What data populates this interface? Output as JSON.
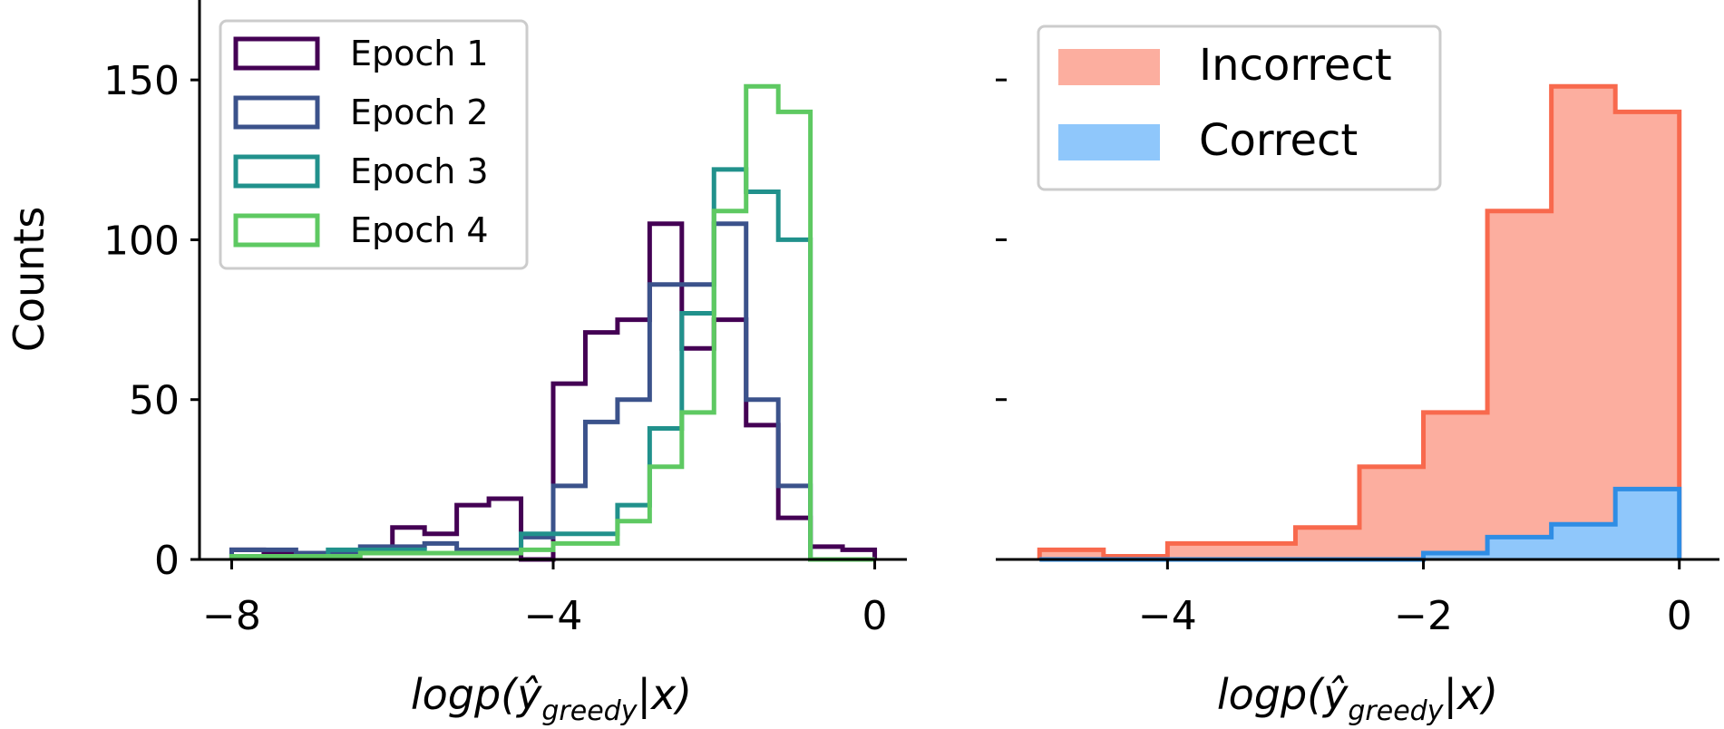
{
  "chart_data": [
    {
      "type": "histogram",
      "ylabel": "Counts",
      "xlabel": "logp(ŷ_greedy|x)",
      "xlim": [
        -8.4,
        0.4
      ],
      "ylim": [
        0,
        175
      ],
      "xticks": [
        -8,
        -4,
        0
      ],
      "xtick_labels": [
        "−8",
        "−4",
        "0"
      ],
      "yticks": [
        0,
        50,
        100,
        150
      ],
      "ytick_labels": [
        "0",
        "50",
        "100",
        "150"
      ],
      "bin_edges": [
        -8,
        -7.6,
        -7.2,
        -6.8,
        -6.4,
        -6,
        -5.6,
        -5.2,
        -4.8,
        -4.4,
        -4,
        -3.6,
        -3.2,
        -2.8,
        -2.4,
        -2,
        -1.6,
        -1.2,
        -0.8,
        -0.4,
        0
      ],
      "legend_position": "upper left",
      "series": [
        {
          "name": "Epoch 1",
          "color": "#440154",
          "values": [
            3,
            2,
            2,
            2,
            2,
            10,
            8,
            17,
            19,
            0,
            55,
            71,
            75,
            105,
            66,
            75,
            42,
            13,
            4,
            3
          ]
        },
        {
          "name": "Epoch 2",
          "color": "#3b528b",
          "values": [
            3,
            3,
            2,
            2,
            4,
            4,
            5,
            3,
            3,
            7,
            23,
            43,
            50,
            86,
            86,
            105,
            50,
            23,
            0,
            0
          ]
        },
        {
          "name": "Epoch 3",
          "color": "#21918c",
          "values": [
            1,
            1,
            1,
            3,
            3,
            3,
            2,
            2,
            2,
            8,
            8,
            8,
            17,
            41,
            77,
            122,
            115,
            100,
            0,
            0
          ]
        },
        {
          "name": "Epoch 4",
          "color": "#5ec962",
          "values": [
            1,
            1,
            1,
            1,
            2,
            2,
            2,
            2,
            2,
            3,
            5,
            5,
            12,
            29,
            46,
            109,
            148,
            140,
            0,
            0
          ]
        }
      ]
    },
    {
      "type": "histogram",
      "xlabel": "logp(ŷ_greedy|x)",
      "xlim": [
        -5.25,
        0.25
      ],
      "ylim": [
        0,
        175
      ],
      "xticks": [
        -4,
        -2,
        0
      ],
      "xtick_labels": [
        "−4",
        "−2",
        "0"
      ],
      "yticks": [
        0,
        50,
        100,
        150
      ],
      "bin_edges": [
        -5,
        -4.5,
        -4,
        -3.5,
        -3,
        -2.5,
        -2,
        -1.5,
        -1,
        -0.5,
        0
      ],
      "legend_position": "upper left",
      "series": [
        {
          "name": "Incorrect",
          "color": "#fcae9f",
          "edge_color": "#f8694d",
          "values": [
            3,
            1,
            5,
            5,
            10,
            29,
            46,
            109,
            148,
            140
          ]
        },
        {
          "name": "Correct",
          "color": "#8fc7fb",
          "edge_color": "#2f8de4",
          "values": [
            0,
            0,
            0,
            0,
            0,
            0,
            2,
            7,
            11,
            22
          ]
        }
      ]
    }
  ]
}
